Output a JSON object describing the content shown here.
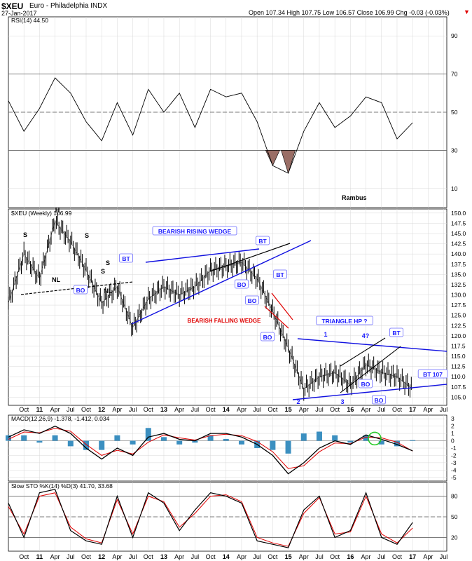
{
  "header": {
    "symbol": "$XEU",
    "name": "Euro - Philadelphia INDX",
    "date": "27-Jan-2017",
    "ohlc": "Open 107.34  High 107.75  Low 106.57  Close 106.99  Chg -0.03 (-0.03%)",
    "down_arrow": "▼"
  },
  "colors": {
    "price": "#000000",
    "trend": "#1010e0",
    "label": "#1a1aff",
    "red": "#e00000",
    "rsi_fill": "#9a6e66",
    "macd_hist": "#3b8fc0",
    "circle": "#22c922",
    "grid": "#d8d8d8"
  },
  "chart_data": [
    {
      "type": "line",
      "panel": "RSI",
      "title": "RSI(14) 44.50",
      "ylim": [
        0,
        100
      ],
      "yticks": [
        10,
        30,
        50,
        70,
        90
      ],
      "reference_lines": [
        70,
        50,
        30
      ],
      "annotation": "Rambus",
      "x": [
        "2010-07",
        "2010-10",
        "2011-01",
        "2011-04",
        "2011-07",
        "2011-10",
        "2012-01",
        "2012-04",
        "2012-07",
        "2012-10",
        "2013-01",
        "2013-04",
        "2013-07",
        "2013-10",
        "2014-01",
        "2014-04",
        "2014-07",
        "2014-10",
        "2015-01",
        "2015-04",
        "2015-07",
        "2015-10",
        "2016-01",
        "2016-04",
        "2016-07",
        "2016-10",
        "2017-01"
      ],
      "values": [
        56,
        40,
        52,
        68,
        60,
        45,
        35,
        55,
        38,
        62,
        50,
        60,
        42,
        62,
        58,
        60,
        45,
        22,
        18,
        40,
        55,
        42,
        48,
        58,
        55,
        36,
        44.5
      ]
    },
    {
      "type": "line",
      "panel": "Price",
      "title": "$XEU (Weekly) 106.99",
      "ylim": [
        103,
        151
      ],
      "yticks": [
        105.0,
        107.5,
        110.0,
        112.5,
        115.0,
        117.5,
        120.0,
        122.5,
        125.0,
        127.5,
        130.0,
        132.5,
        135.0,
        137.5,
        140.0,
        142.5,
        145.0,
        147.5,
        150.0
      ],
      "series": [
        {
          "x": [
            "2010-07",
            "2010-10",
            "2011-01",
            "2011-04",
            "2011-07",
            "2011-10",
            "2012-01",
            "2012-04",
            "2012-07",
            "2012-10",
            "2013-01",
            "2013-04",
            "2013-07",
            "2013-10",
            "2014-01",
            "2014-04",
            "2014-07",
            "2014-10",
            "2015-01",
            "2015-04",
            "2015-07",
            "2015-10",
            "2016-01",
            "2016-04",
            "2016-07",
            "2016-10",
            "2017-01"
          ],
          "values": [
            128,
            140,
            134,
            148,
            143,
            136,
            128,
            132,
            122,
            129,
            132,
            130,
            132,
            136,
            137,
            138,
            134,
            126,
            117,
            107,
            110,
            111,
            108,
            113,
            111,
            110,
            107
          ]
        }
      ],
      "annotations": [
        "H",
        "S",
        "S",
        "S",
        "S",
        "NL",
        "NL",
        "BO",
        "BT",
        "BEARISH RISING WEDGE",
        "BT",
        "BO",
        "BO",
        "BT",
        "BEARISH FALLING WEDGE",
        "BO",
        "TRIANGLE HP ?",
        "1",
        "2",
        "3",
        "4?",
        "BT",
        "BO",
        "BO",
        "BT 107"
      ]
    },
    {
      "type": "line",
      "panel": "MACD",
      "title": "MACD(12,26,9) -1.378, -1.412, 0.034",
      "ylim": [
        -5.5,
        3.5
      ],
      "yticks": [
        -5,
        -4,
        -3,
        -2,
        -1,
        0,
        1,
        2,
        3
      ],
      "x": [
        "2010-07",
        "2010-10",
        "2011-01",
        "2011-04",
        "2011-07",
        "2011-10",
        "2012-01",
        "2012-04",
        "2012-07",
        "2012-10",
        "2013-01",
        "2013-04",
        "2013-07",
        "2013-10",
        "2014-01",
        "2014-04",
        "2014-07",
        "2014-10",
        "2015-01",
        "2015-04",
        "2015-07",
        "2015-10",
        "2016-01",
        "2016-04",
        "2016-07",
        "2016-10",
        "2017-01"
      ],
      "series": [
        {
          "values": [
            0.5,
            1.5,
            1.0,
            2.0,
            1.0,
            -1.0,
            -2.5,
            -1.0,
            -2.0,
            0.5,
            1.0,
            0.2,
            0.0,
            1.0,
            1.0,
            0.5,
            -0.5,
            -2.0,
            -4.5,
            -3.0,
            -1.0,
            0.0,
            -0.5,
            0.8,
            0.2,
            -0.5,
            -1.378
          ]
        },
        {
          "values": [
            0.2,
            1.2,
            1.1,
            1.7,
            1.3,
            -0.5,
            -2.0,
            -1.3,
            -1.8,
            -0.2,
            0.8,
            0.4,
            0.1,
            0.7,
            0.9,
            0.7,
            -0.1,
            -1.5,
            -3.8,
            -3.4,
            -1.5,
            -0.3,
            -0.4,
            0.5,
            0.4,
            -0.2,
            -1.412
          ]
        }
      ]
    },
    {
      "type": "line",
      "panel": "Slow STO",
      "title": "Slow STO %K(14) %D(3) 41.70, 33.68",
      "ylim": [
        0,
        100
      ],
      "yticks": [
        20,
        50,
        80
      ],
      "reference_lines": [
        80,
        50,
        20
      ],
      "x": [
        "2010-07",
        "2010-10",
        "2011-01",
        "2011-04",
        "2011-07",
        "2011-10",
        "2012-01",
        "2012-04",
        "2012-07",
        "2012-10",
        "2013-01",
        "2013-04",
        "2013-07",
        "2013-10",
        "2014-01",
        "2014-04",
        "2014-07",
        "2014-10",
        "2015-01",
        "2015-04",
        "2015-07",
        "2015-10",
        "2016-01",
        "2016-04",
        "2016-07",
        "2016-10",
        "2017-01"
      ],
      "series": [
        {
          "values": [
            70,
            20,
            85,
            90,
            30,
            15,
            10,
            80,
            20,
            85,
            70,
            30,
            60,
            85,
            80,
            70,
            15,
            10,
            5,
            60,
            80,
            20,
            30,
            85,
            20,
            10,
            41.7
          ]
        },
        {
          "values": [
            65,
            25,
            80,
            85,
            35,
            18,
            12,
            75,
            25,
            80,
            72,
            35,
            55,
            80,
            82,
            72,
            20,
            12,
            7,
            55,
            78,
            25,
            28,
            80,
            25,
            12,
            33.68
          ]
        }
      ]
    }
  ],
  "x_ticks": [
    "Oct",
    "11",
    "Apr",
    "Jul",
    "Oct",
    "12",
    "Apr",
    "Jul",
    "Oct",
    "13",
    "Apr",
    "Jul",
    "Oct",
    "14",
    "Apr",
    "Jul",
    "Oct",
    "15",
    "Apr",
    "Jul",
    "Oct",
    "16",
    "Apr",
    "Jul",
    "Oct",
    "17",
    "Apr",
    "Jul"
  ]
}
